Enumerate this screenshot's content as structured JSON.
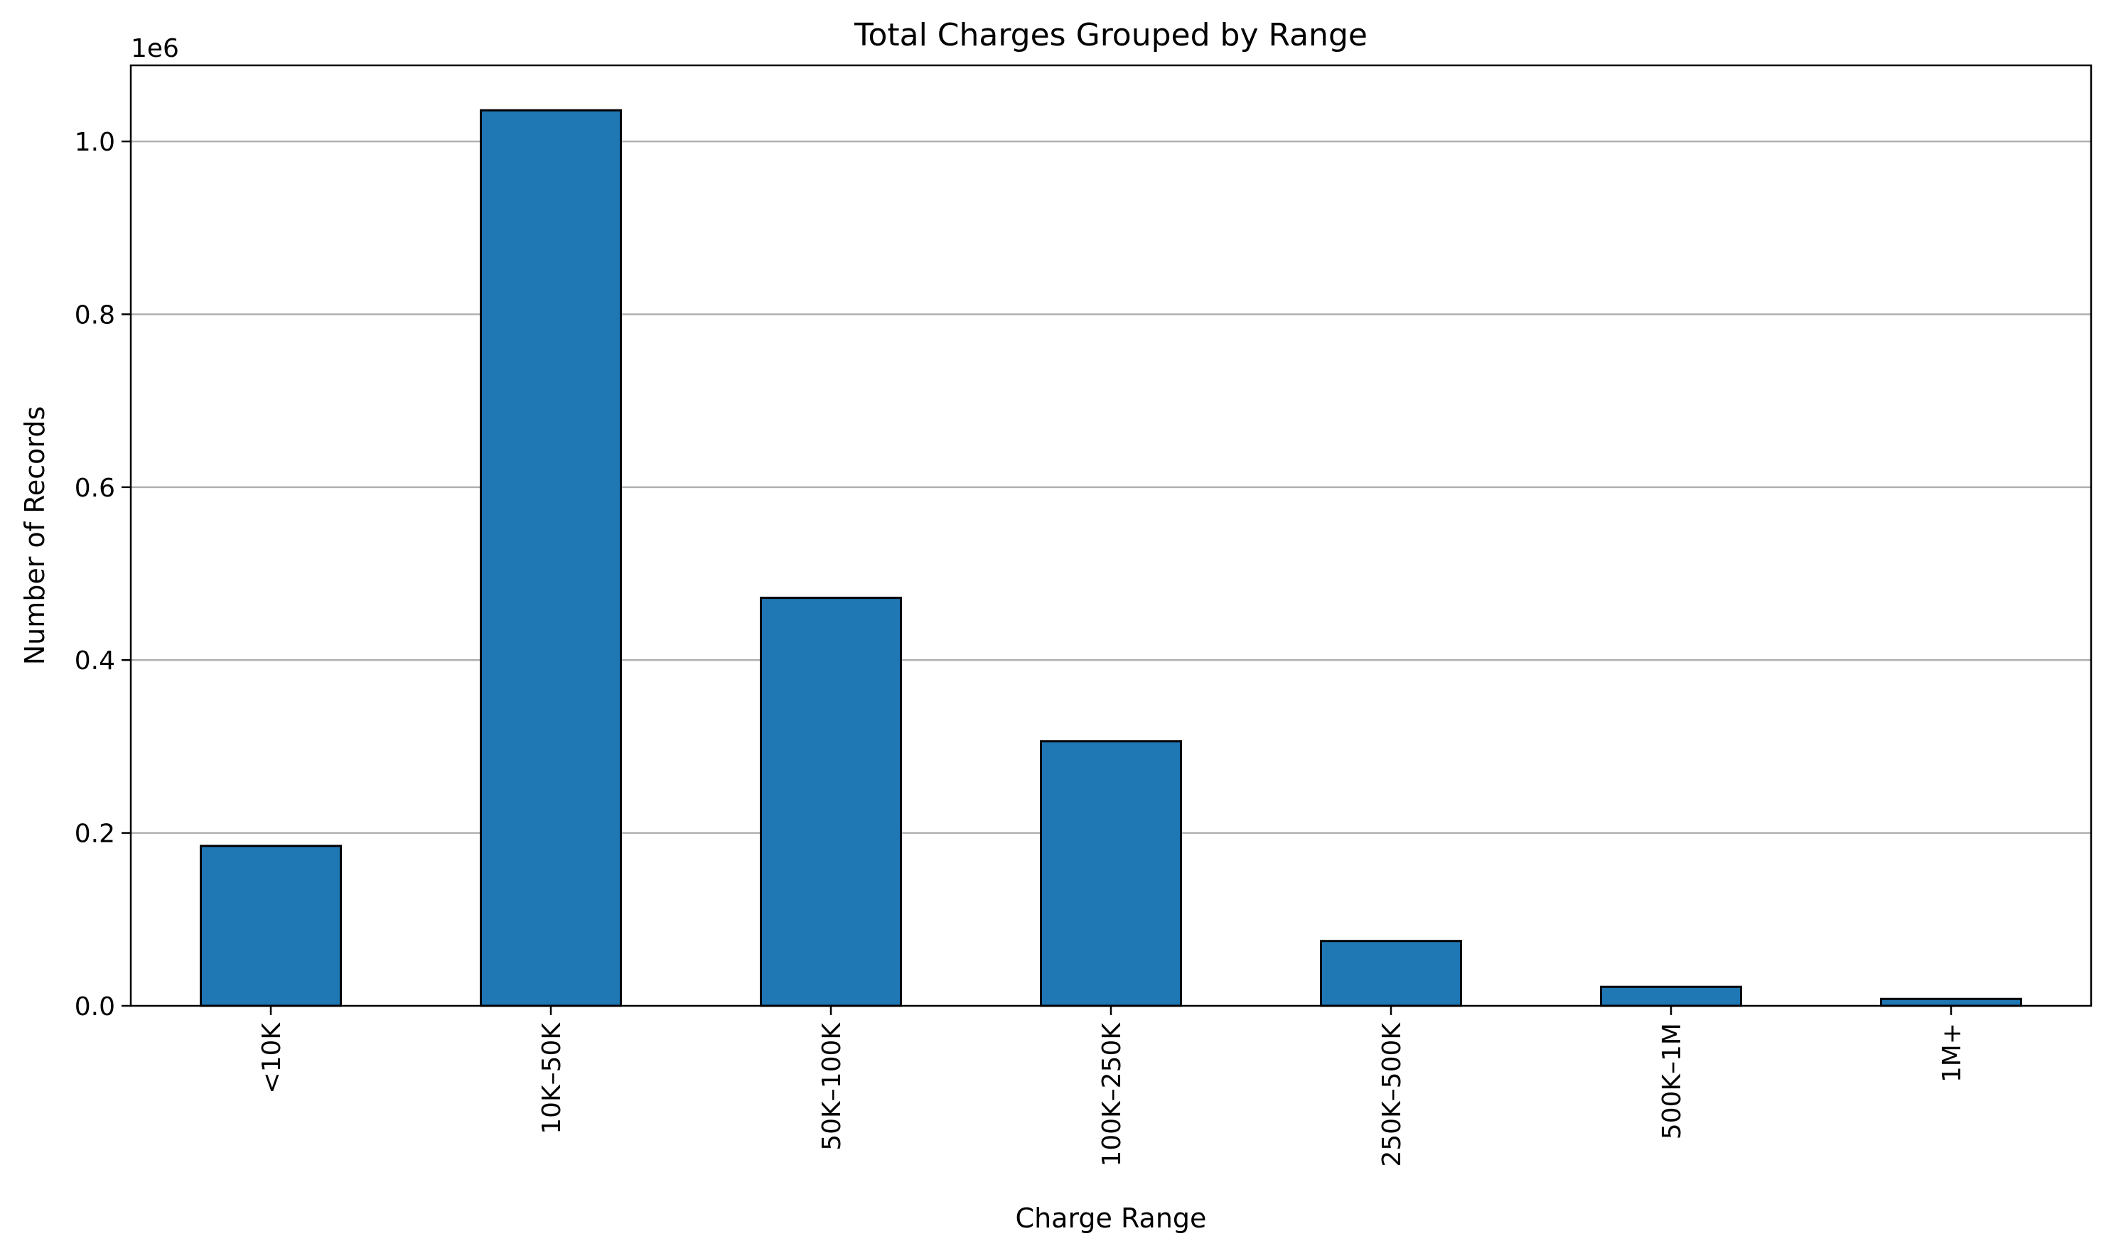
{
  "chart_data": {
    "type": "bar",
    "title": "Total Charges Grouped by Range",
    "xlabel": "Charge Range",
    "ylabel": "Number of Records",
    "y_offset_label": "1e6",
    "categories": [
      "<10K",
      "10K–50K",
      "50K–100K",
      "100K–250K",
      "250K–500K",
      "500K–1M",
      "1M+"
    ],
    "values": [
      185000,
      1036000,
      472000,
      306000,
      75000,
      22000,
      8000
    ],
    "ylim": [
      0,
      1088000
    ],
    "y_ticks": [
      0,
      200000,
      400000,
      600000,
      800000,
      1000000
    ],
    "y_tick_labels": [
      "0.0",
      "0.2",
      "0.4",
      "0.6",
      "0.8",
      "1.0"
    ],
    "grid": "y-major",
    "legend": "none",
    "colors": {
      "bar_fill": "#1f77b4",
      "bar_edge": "#000000",
      "grid": "#b0b0b0",
      "axes": "#000000"
    }
  }
}
